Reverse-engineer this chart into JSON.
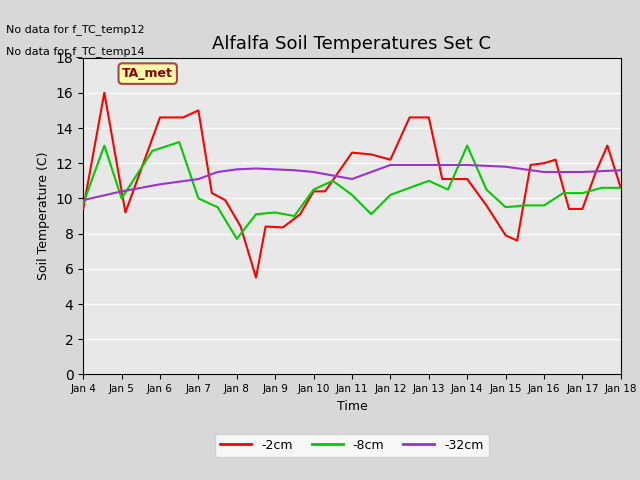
{
  "title": "Alfalfa Soil Temperatures Set C",
  "xlabel": "Time",
  "ylabel": "Soil Temperature (C)",
  "no_data_text": [
    "No data for f_TC_temp12",
    "No data for f_TC_temp14"
  ],
  "ta_met_label": "TA_met",
  "legend_entries": [
    "-2cm",
    "-8cm",
    "-32cm"
  ],
  "legend_colors": [
    "#ff0000",
    "#00cc00",
    "#9933cc"
  ],
  "ylim": [
    0,
    18
  ],
  "yticks": [
    0,
    2,
    4,
    6,
    8,
    10,
    12,
    14,
    16,
    18
  ],
  "x_labels": [
    "Jan 4",
    "Jan 5",
    "Jan 6",
    "Jan 7",
    "Jan 8",
    "Jan 9",
    "Jan 10",
    "Jan 11",
    "Jan 12",
    "Jan 13",
    "Jan 14",
    "Jan 15",
    "Jan 16",
    "Jan 17",
    "Jan 18"
  ],
  "red_x": [
    0.0,
    0.55,
    1.1,
    2.0,
    2.6,
    3.0,
    3.35,
    3.7,
    4.1,
    4.5,
    4.75,
    5.2,
    5.65,
    6.0,
    6.3,
    7.0,
    7.5,
    8.0,
    8.5,
    9.0,
    9.35,
    9.65,
    10.0,
    10.5,
    11.0,
    11.3,
    11.65,
    12.0,
    12.3,
    12.65,
    13.0,
    13.35,
    13.65,
    14.0
  ],
  "red_y": [
    9.4,
    16.0,
    9.2,
    14.6,
    14.6,
    15.0,
    10.3,
    9.9,
    8.4,
    5.5,
    8.4,
    8.35,
    9.1,
    10.4,
    10.4,
    12.6,
    12.5,
    12.2,
    14.6,
    14.6,
    11.1,
    11.1,
    11.1,
    9.6,
    7.9,
    7.6,
    11.9,
    12.0,
    12.2,
    9.4,
    9.4,
    11.5,
    13.0,
    10.6
  ],
  "green_x": [
    0.0,
    0.55,
    1.0,
    1.8,
    2.5,
    3.0,
    3.5,
    4.0,
    4.5,
    5.0,
    5.5,
    6.0,
    6.5,
    7.0,
    7.5,
    8.0,
    9.0,
    9.5,
    10.0,
    10.5,
    11.0,
    11.5,
    12.0,
    12.5,
    13.0,
    13.5,
    14.0
  ],
  "green_y": [
    9.7,
    13.0,
    10.0,
    12.7,
    13.2,
    10.0,
    9.5,
    7.7,
    9.1,
    9.2,
    9.0,
    10.5,
    11.0,
    10.2,
    9.1,
    10.2,
    11.0,
    10.5,
    13.0,
    10.5,
    9.5,
    9.6,
    9.6,
    10.3,
    10.3,
    10.6,
    10.6
  ],
  "purple_x": [
    0.0,
    1.0,
    2.0,
    3.0,
    3.5,
    4.0,
    4.5,
    5.0,
    5.5,
    6.0,
    7.0,
    8.0,
    9.0,
    10.0,
    11.0,
    12.0,
    13.0,
    14.0
  ],
  "purple_y": [
    9.9,
    10.4,
    10.8,
    11.1,
    11.5,
    11.65,
    11.7,
    11.65,
    11.6,
    11.5,
    11.1,
    11.9,
    11.9,
    11.9,
    11.8,
    11.5,
    11.5,
    11.6
  ],
  "bg_color": "#e8e8e8",
  "fig_color": "#d8d8d8"
}
